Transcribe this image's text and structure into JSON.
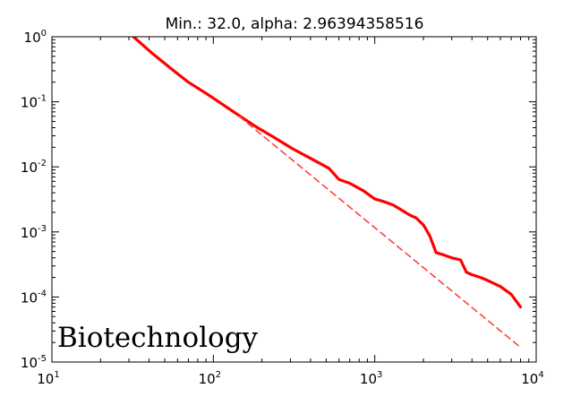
{
  "chart_data": {
    "type": "line",
    "title": "Min.: 32.0, alpha: 2.96394358516",
    "annotation": "Biotechnology",
    "xscale": "log",
    "yscale": "log",
    "xlim": [
      10,
      10000
    ],
    "ylim": [
      1e-05,
      1
    ],
    "x_ticks": [
      {
        "base": "10",
        "exp": "1",
        "value": 10
      },
      {
        "base": "10",
        "exp": "2",
        "value": 100
      },
      {
        "base": "10",
        "exp": "3",
        "value": 1000
      },
      {
        "base": "10",
        "exp": "4",
        "value": 10000
      }
    ],
    "y_ticks": [
      {
        "base": "10",
        "exp": "0",
        "value": 1
      },
      {
        "base": "10",
        "exp": "-1",
        "value": 0.1
      },
      {
        "base": "10",
        "exp": "-2",
        "value": 0.01
      },
      {
        "base": "10",
        "exp": "-3",
        "value": 0.001
      },
      {
        "base": "10",
        "exp": "-4",
        "value": 0.0001
      },
      {
        "base": "10",
        "exp": "-5",
        "value": 1e-05
      }
    ],
    "grid": false,
    "series": [
      {
        "style": "solid",
        "color": "#ff0000",
        "x": [
          32,
          42,
          55,
          70,
          90,
          115,
          145,
          185,
          240,
          310,
          400,
          520,
          600,
          700,
          850,
          1000,
          1150,
          1300,
          1450,
          1600,
          1700,
          1800,
          1900,
          2000,
          2100,
          2200,
          2400,
          2700,
          3000,
          3400,
          3700,
          4000,
          4500,
          5000,
          6000,
          7000,
          8000
        ],
        "y": [
          1.0,
          0.55,
          0.32,
          0.2,
          0.135,
          0.09,
          0.061,
          0.041,
          0.028,
          0.019,
          0.0135,
          0.0095,
          0.0064,
          0.0056,
          0.0043,
          0.0032,
          0.0029,
          0.0026,
          0.0022,
          0.0019,
          0.00175,
          0.00165,
          0.00145,
          0.00128,
          0.00105,
          0.00085,
          0.00048,
          0.00044,
          0.0004,
          0.00037,
          0.00024,
          0.00022,
          0.0002,
          0.00018,
          0.000145,
          0.00011,
          7e-05
        ]
      },
      {
        "style": "dashed",
        "color": "#ff4040",
        "x": [
          145,
          8000
        ],
        "y": [
          0.0595,
          1.68e-05
        ]
      }
    ]
  }
}
